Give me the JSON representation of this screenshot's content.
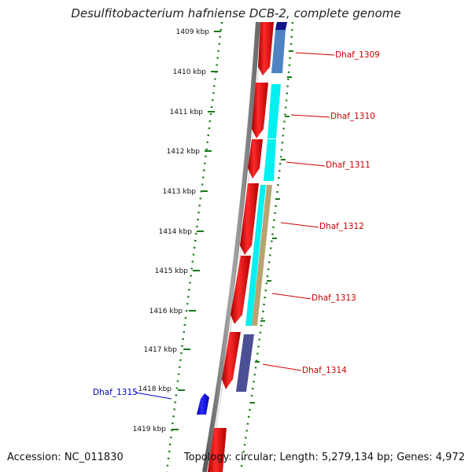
{
  "title": "Desulfitobacterium hafniense DCB-2, complete genome",
  "accession": "Accession: NC_011830",
  "topology": "Topology: circular",
  "length": "Length: 5,279,134 bp",
  "genes": "Genes: 4,972",
  "kbp_ticks": [
    "1409 kbp",
    "1410 kbp",
    "1411 kbp",
    "1412 kbp",
    "1413 kbp",
    "1414 kbp",
    "1415 kbp",
    "1416 kbp",
    "1417 kbp",
    "1418 kbp",
    "1419 kbp"
  ],
  "gene_labels": [
    {
      "text": "Dhaf_1309",
      "color": "#cc0000"
    },
    {
      "text": "Dhaf_1310",
      "color": "#cc0000"
    },
    {
      "text": "Dhaf_1311",
      "color": "#cc0000"
    },
    {
      "text": "Dhaf_1312",
      "color": "#cc0000"
    },
    {
      "text": "Dhaf_1313",
      "color": "#cc0000"
    },
    {
      "text": "Dhaf_1314",
      "color": "#cc0000"
    },
    {
      "text": "Dhaf_1315",
      "color": "#0000cc"
    }
  ],
  "colors": {
    "backbone": "#808080",
    "tick": "#1a7a1a",
    "forward_gene": "#ee0000",
    "reverse_gene": "#0000ee",
    "cds_steelblue": "#4f84c4",
    "cds_cyan": "#00f0f0",
    "cds_tan": "#b8a470",
    "cds_darkslate": "#4b4f93",
    "cds_navy": "#13128a"
  }
}
